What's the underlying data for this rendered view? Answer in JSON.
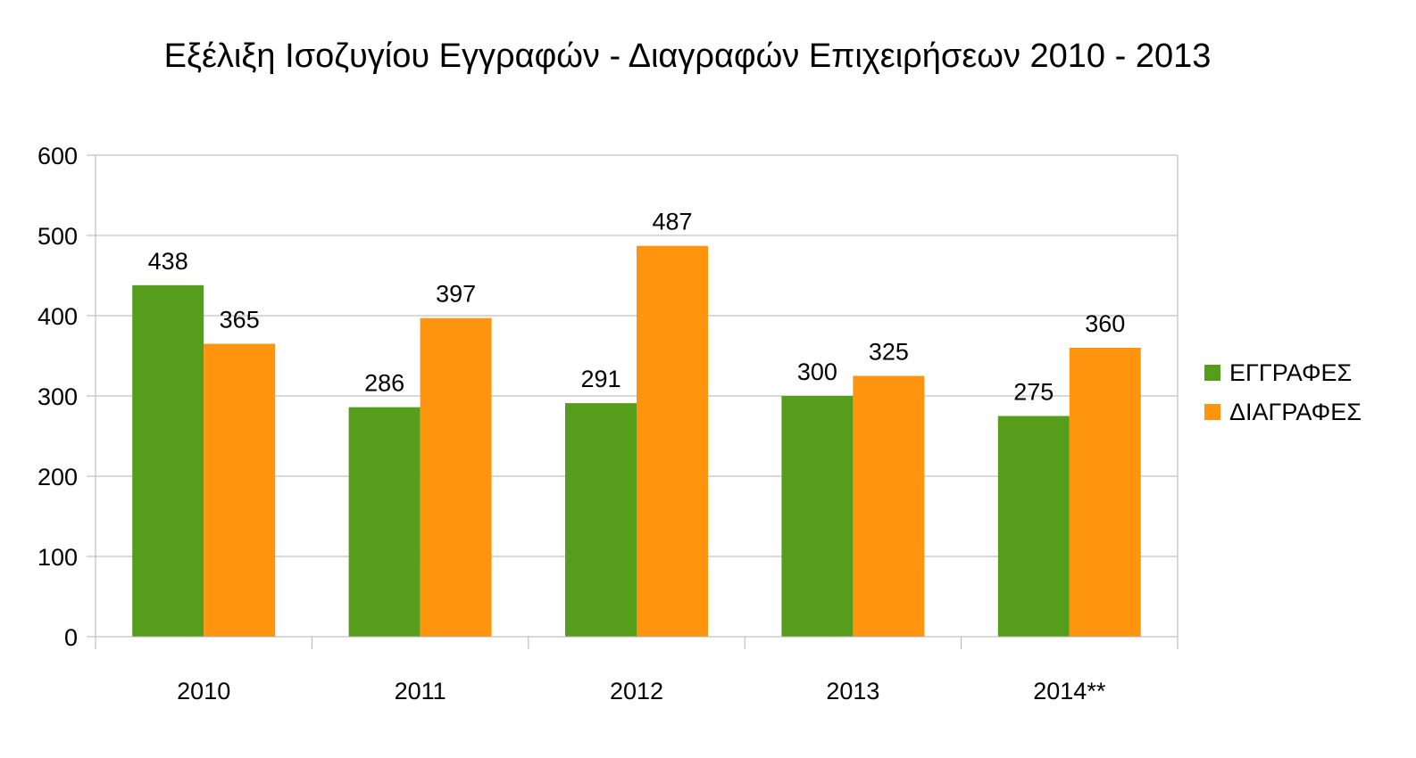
{
  "chart_data": {
    "type": "bar",
    "title": "Εξέλιξη Ισοζυγίου Εγγραφών - Διαγραφών Επιχειρήσεων 2010 - 2013",
    "xlabel": "",
    "ylabel": "",
    "categories": [
      "2010",
      "2011",
      "2012",
      "2013",
      "2014**"
    ],
    "series": [
      {
        "name": "ΕΓΓΡΑΦΕΣ",
        "values": [
          438,
          286,
          291,
          300,
          275
        ],
        "color": "#579d1c"
      },
      {
        "name": "ΔΙΑΓΡΑΦΕΣ",
        "values": [
          365,
          397,
          487,
          325,
          360
        ],
        "color": "#ff950e"
      }
    ],
    "ylim": [
      0,
      600
    ],
    "yticks": [
      0,
      100,
      200,
      300,
      400,
      500,
      600
    ],
    "grid": true,
    "data_labels": true,
    "legend_position": "right"
  }
}
